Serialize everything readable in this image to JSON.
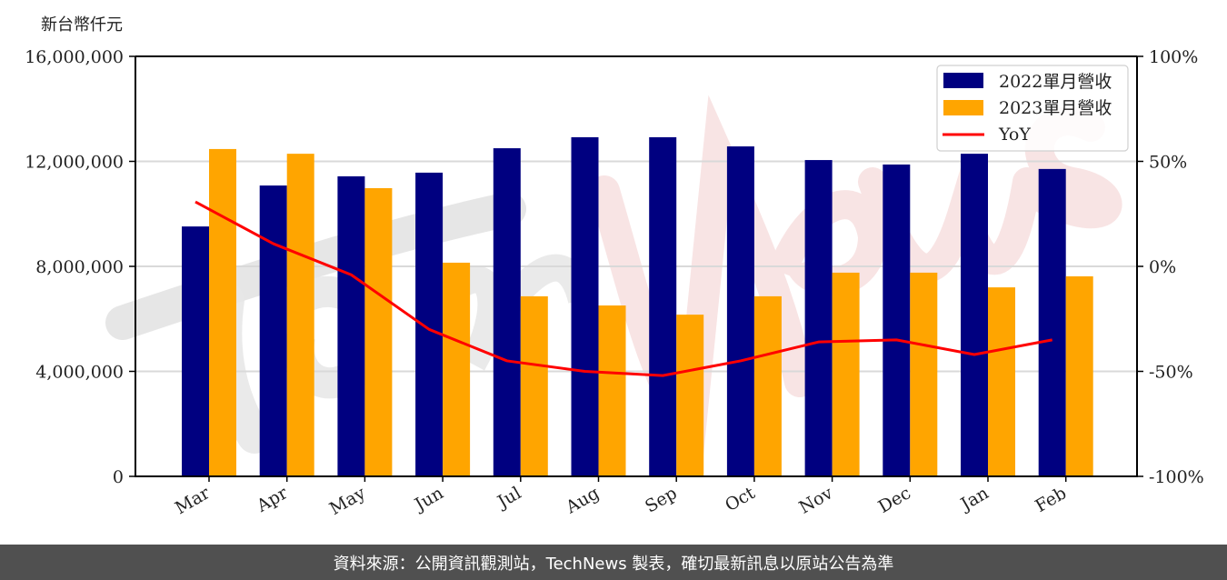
{
  "chart_data": {
    "type": "bar",
    "title": "",
    "ylabel": "新台幣仟元",
    "xlabel": "",
    "categories": [
      "Mar",
      "Apr",
      "May",
      "Jun",
      "Jul",
      "Aug",
      "Sep",
      "Oct",
      "Nov",
      "Dec",
      "Jan",
      "Feb"
    ],
    "series": [
      {
        "name": "2022單月營收",
        "type": "bar",
        "axis": "left",
        "color": "#000080",
        "values": [
          9520000,
          11080000,
          11430000,
          11570000,
          12500000,
          12920000,
          12920000,
          12570000,
          12050000,
          11880000,
          12290000,
          11710000
        ]
      },
      {
        "name": "2023單月營收",
        "type": "bar",
        "axis": "left",
        "color": "#FFA500",
        "values": [
          12470000,
          12290000,
          10980000,
          8140000,
          6860000,
          6510000,
          6160000,
          6860000,
          7760000,
          7760000,
          7200000,
          7620000
        ]
      },
      {
        "name": "YoY",
        "type": "line",
        "axis": "right",
        "color": "#FF0000",
        "values": [
          30.7,
          10.8,
          -4,
          -30,
          -45,
          -50,
          -52,
          -45,
          -36,
          -35,
          -42,
          -35
        ]
      }
    ],
    "ylim": [
      0,
      16000000
    ],
    "y2lim": [
      -100,
      100
    ],
    "yticks": [
      "0",
      "4,000,000",
      "8,000,000",
      "12,000,000",
      "16,000,000"
    ],
    "y2ticks": [
      "-100%",
      "-50%",
      "0%",
      "50%",
      "100%"
    ],
    "grid": "horizontal",
    "legend_position": "upper right",
    "watermark": "TechNews"
  },
  "axis": {
    "unit_label": "新台幣仟元",
    "left_ticks": [
      {
        "label": "16,000,000",
        "value": 16000000
      },
      {
        "label": "12,000,000",
        "value": 12000000
      },
      {
        "label": "8,000,000",
        "value": 8000000
      },
      {
        "label": "4,000,000",
        "value": 4000000
      },
      {
        "label": "0",
        "value": 0
      }
    ],
    "right_ticks": [
      {
        "label": "100%",
        "value": 100
      },
      {
        "label": "50%",
        "value": 50
      },
      {
        "label": "0%",
        "value": 0
      },
      {
        "label": "-50%",
        "value": -50
      },
      {
        "label": "-100%",
        "value": -100
      }
    ]
  },
  "legend": {
    "items": [
      {
        "label": "2022單月營收",
        "color": "#000080",
        "kind": "bar"
      },
      {
        "label": "2023單月營收",
        "color": "#FFA500",
        "kind": "bar"
      },
      {
        "label": "YoY",
        "color": "#FF0000",
        "kind": "line"
      }
    ]
  },
  "footer": {
    "text": "資料來源：公開資訊觀測站，TechNews 製表，確切最新訊息以原站公告為準"
  }
}
